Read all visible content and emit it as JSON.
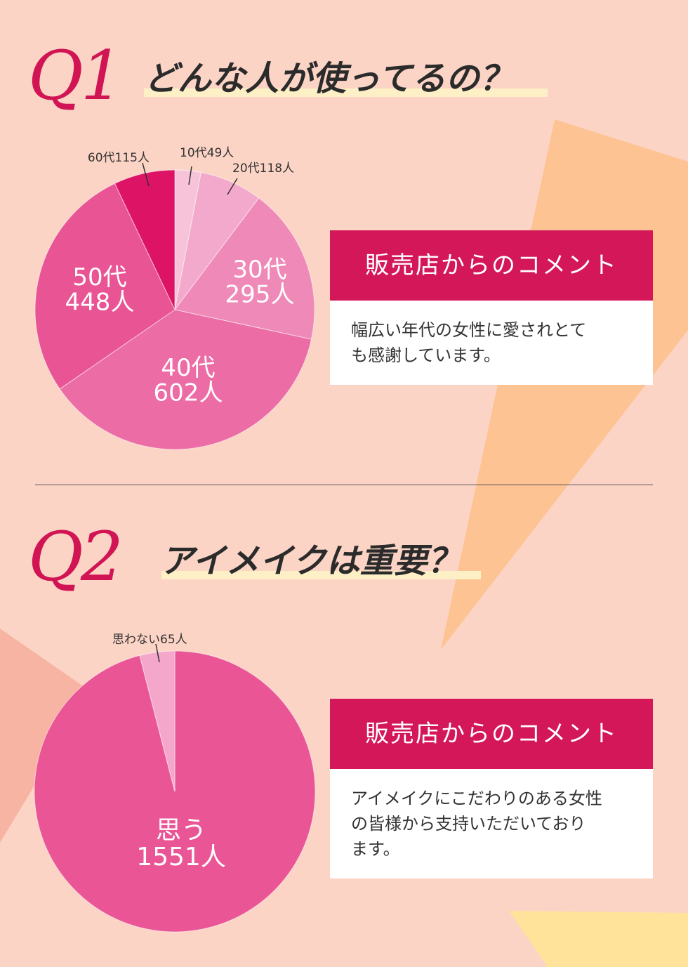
{
  "colors": {
    "accent": "#d31759",
    "question_number": "#d01454",
    "background": "#fcd4c5"
  },
  "q1": {
    "number": "Q1",
    "title": "どんな人が使ってるの？",
    "comment": {
      "header": "販売店からのコメント",
      "body_lines": [
        "幅広い年代の女性に愛されとて",
        "も感謝しています。"
      ]
    }
  },
  "q2": {
    "number": "Q2",
    "title": "アイメイクは重要？",
    "comment": {
      "header": "販売店からのコメント",
      "body_lines": [
        "アイメイクにこだわりのある女性",
        "の皆様から支持いただいており",
        "ます。"
      ]
    }
  },
  "chart_data": [
    {
      "type": "pie",
      "slices": [
        {
          "label": "10代",
          "count": "49人",
          "value": 49,
          "color": "#f6c3d9",
          "label_style": "outside"
        },
        {
          "label": "20代",
          "count": "118人",
          "value": 118,
          "color": "#f3a9cb",
          "label_style": "outside"
        },
        {
          "label": "30代",
          "count": "295人",
          "value": 295,
          "color": "#ef8ab8",
          "label_style": "inside"
        },
        {
          "label": "40代",
          "count": "602人",
          "value": 602,
          "color": "#ec6ca5",
          "label_style": "inside"
        },
        {
          "label": "50代",
          "count": "448人",
          "value": 448,
          "color": "#e95494",
          "label_style": "inside"
        },
        {
          "label": "60代",
          "count": "115人",
          "value": 115,
          "color": "#dd1466",
          "label_style": "outside"
        }
      ]
    },
    {
      "type": "pie",
      "slices": [
        {
          "label": "思う",
          "count": "1551人",
          "value": 1551,
          "color": "#ea5596",
          "label_style": "inside"
        },
        {
          "label": "思わない",
          "count": "65人",
          "value": 65,
          "color": "#f4a6cb",
          "label_style": "outside"
        }
      ]
    }
  ]
}
